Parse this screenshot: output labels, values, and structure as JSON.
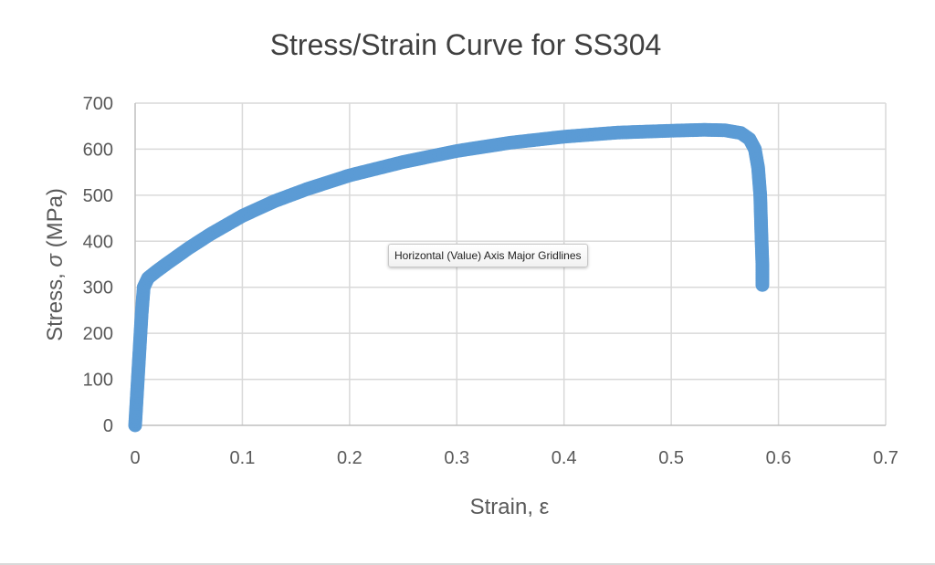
{
  "chart_data": {
    "type": "scatter",
    "title": "Stress/Strain Curve for SS304",
    "xlabel": "Strain, ε",
    "ylabel_prefix": "Stress, ",
    "ylabel_symbol": "σ",
    "ylabel_suffix": " (MPa)",
    "xlim": [
      0,
      0.7
    ],
    "ylim": [
      0,
      700
    ],
    "x_ticks": [
      0,
      0.1,
      0.2,
      0.3,
      0.4,
      0.5,
      0.6,
      0.7
    ],
    "x_tick_labels": [
      "0",
      "0.1",
      "0.2",
      "0.3",
      "0.4",
      "0.5",
      "0.6",
      "0.7"
    ],
    "y_ticks": [
      0,
      100,
      200,
      300,
      400,
      500,
      600,
      700
    ],
    "y_tick_labels": [
      "0",
      "100",
      "200",
      "300",
      "400",
      "500",
      "600",
      "700"
    ],
    "grid": true,
    "series": [
      {
        "name": "SS304",
        "color": "#5b9bd5",
        "x": [
          0,
          0.002,
          0.004,
          0.006,
          0.008,
          0.012,
          0.02,
          0.03,
          0.05,
          0.07,
          0.1,
          0.13,
          0.16,
          0.2,
          0.25,
          0.3,
          0.35,
          0.4,
          0.45,
          0.5,
          0.53,
          0.55,
          0.565,
          0.573,
          0.578,
          0.581,
          0.583,
          0.584,
          0.585,
          0.585
        ],
        "y": [
          0,
          80,
          160,
          240,
          300,
          320,
          335,
          352,
          385,
          415,
          455,
          487,
          513,
          543,
          572,
          596,
          614,
          627,
          636,
          640,
          642,
          641,
          635,
          622,
          600,
          560,
          500,
          420,
          350,
          305
        ]
      }
    ]
  },
  "tooltip": {
    "text": "Horizontal (Value) Axis Major Gridlines"
  },
  "colors": {
    "series": "#5b9bd5",
    "grid": "#d9d9d9",
    "axis_text": "#595959",
    "title_text": "#404040"
  }
}
